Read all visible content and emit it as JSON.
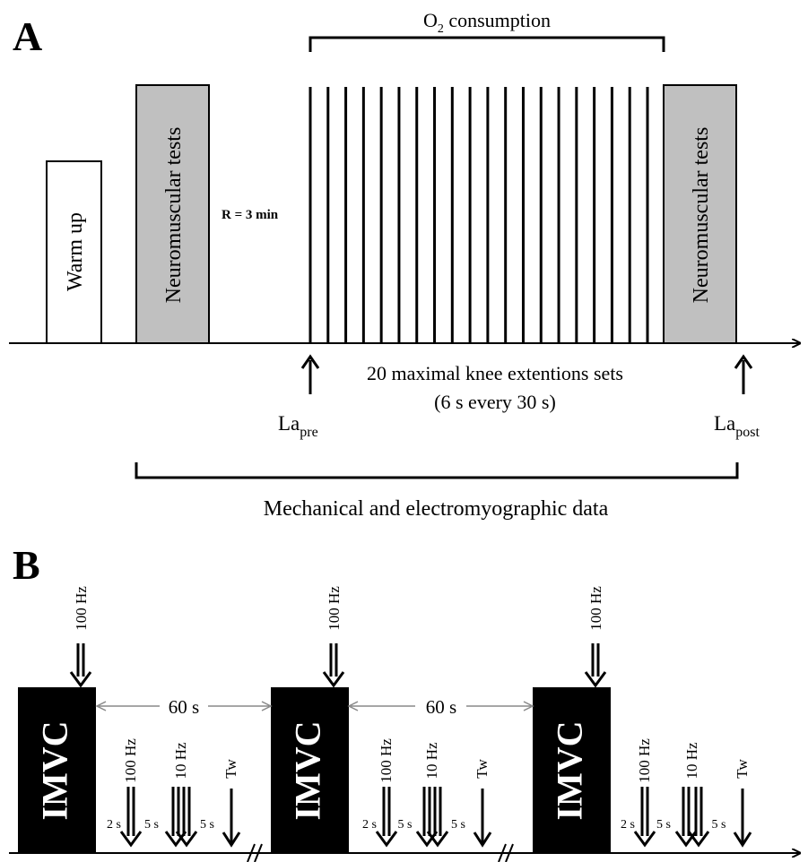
{
  "panel_a": {
    "letter": "A",
    "o2_label": "O",
    "o2_sub": "2",
    "o2_suffix": " consumption",
    "warmup_label": "Warm up",
    "neuro_label_1": "Neuromuscular tests",
    "neuro_label_2": "Neuromuscular tests",
    "rest_label": "R = 3 min",
    "sets_line1": "20 maximal knee extentions sets",
    "sets_line2": "(6 s every 30 s)",
    "la_pre_main": "La",
    "la_pre_sub": "pre",
    "la_post_main": "La",
    "la_post_sub": "post",
    "mech_label": "Mechanical and electromyographic data",
    "set_count": 20,
    "colors": {
      "neuro_box": "#c0c0c0",
      "black": "#000000"
    }
  },
  "panel_b": {
    "letter": "B",
    "imvc_label": "IMVC",
    "top_freq": "100 Hz",
    "interval_label": "60 s",
    "after_labels": {
      "f100": "100 Hz",
      "f10": "10 Hz",
      "tw": "Tw"
    },
    "gap_labels": {
      "g1": "2 s",
      "g2": "5 s",
      "g3": "5 s"
    },
    "block_count": 3
  }
}
